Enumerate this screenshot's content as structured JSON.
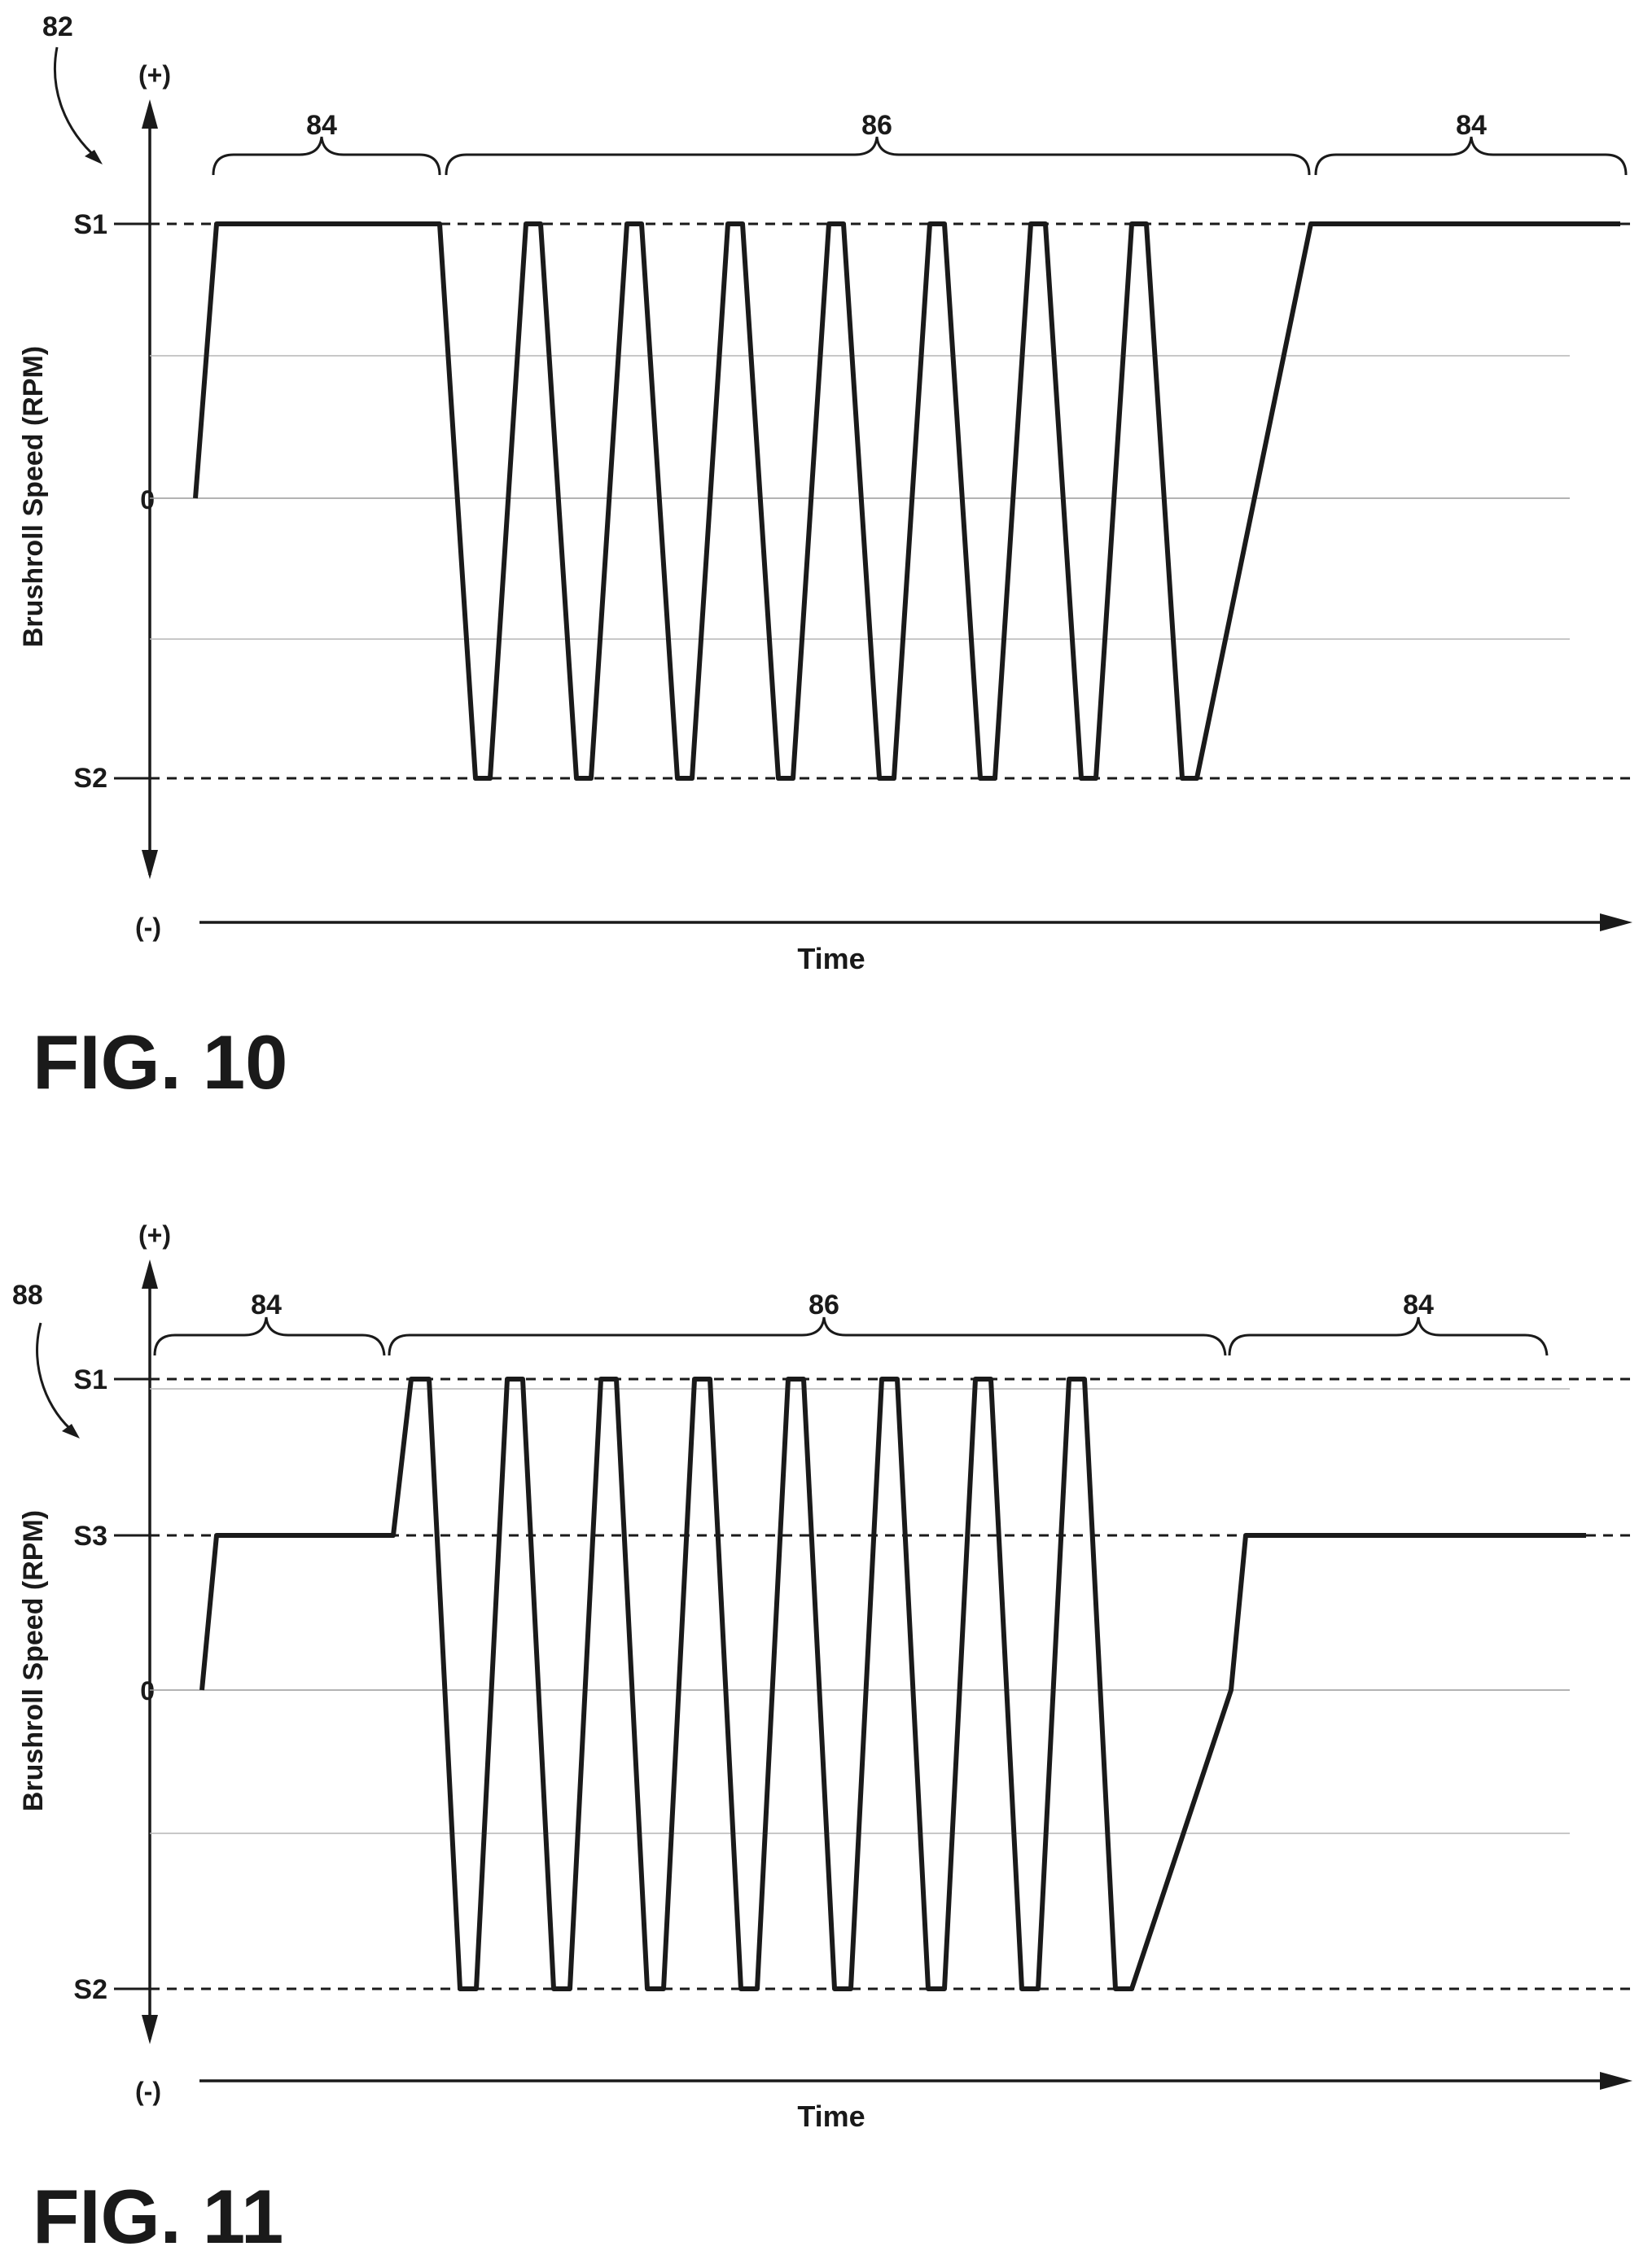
{
  "charts": [
    {
      "ref_numeral": "82",
      "axis_top": "(+)",
      "axis_bottom": "(-)",
      "ylabel": "Brushroll Speed (RPM)",
      "xlabel": "Time",
      "levels": [
        {
          "key": "S1",
          "label": "S1",
          "dashed": true
        },
        {
          "key": "zero",
          "label": "0",
          "dashed": false
        },
        {
          "key": "S2",
          "label": "S2",
          "dashed": true
        }
      ],
      "braces": [
        {
          "label": "84"
        },
        {
          "label": "86"
        },
        {
          "label": "84"
        }
      ],
      "figure_label": "FIG. 10"
    },
    {
      "ref_numeral": "88",
      "axis_top": "(+)",
      "axis_bottom": "(-)",
      "ylabel": "Brushroll Speed (RPM)",
      "xlabel": "Time",
      "levels": [
        {
          "key": "S1",
          "label": "S1",
          "dashed": true
        },
        {
          "key": "S3",
          "label": "S3",
          "dashed": true
        },
        {
          "key": "zero",
          "label": "0",
          "dashed": false
        },
        {
          "key": "S2",
          "label": "S2",
          "dashed": true
        }
      ],
      "braces": [
        {
          "label": "84"
        },
        {
          "label": "86"
        },
        {
          "label": "84"
        }
      ],
      "figure_label": "FIG. 11"
    }
  ],
  "chart_data": [
    {
      "type": "line",
      "title": "",
      "xlabel": "Time",
      "ylabel": "Brushroll Speed (RPM)",
      "y_ticks": [
        "S2",
        "0",
        "S1"
      ],
      "grid": true,
      "series": [
        {
          "values_description_levels": [
            "0",
            "S1",
            "S1",
            "S2",
            "S2",
            "S1",
            "S1",
            "S2",
            "S2",
            "S1",
            "S1",
            "S2",
            "S2",
            "S1",
            "S1",
            "S2",
            "S2",
            "S1",
            "S1",
            "S2",
            "S2",
            "S1",
            "S1",
            "S2",
            "S2",
            "S1",
            "S1",
            "S2",
            "S2",
            "S1",
            "S1",
            "S2",
            "S2",
            "S1",
            "S1"
          ]
        }
      ],
      "segments": [
        "84",
        "86",
        "84"
      ]
    },
    {
      "type": "line",
      "title": "",
      "xlabel": "Time",
      "ylabel": "Brushroll Speed (RPM)",
      "y_ticks": [
        "S2",
        "0",
        "S3",
        "S1"
      ],
      "grid": true,
      "series": [
        {
          "values_description_levels": [
            "0",
            "S3",
            "S3",
            "S1",
            "S1",
            "S2",
            "S2",
            "S1",
            "S1",
            "S2",
            "S2",
            "S1",
            "S1",
            "S2",
            "S2",
            "S1",
            "S1",
            "S2",
            "S2",
            "S1",
            "S1",
            "S2",
            "S2",
            "S1",
            "S1",
            "S2",
            "S2",
            "S1",
            "S1",
            "S2",
            "S2",
            "S1",
            "S1",
            "S2",
            "S2",
            "S3",
            "S3"
          ]
        }
      ],
      "segments": [
        "84",
        "86",
        "84"
      ]
    }
  ]
}
